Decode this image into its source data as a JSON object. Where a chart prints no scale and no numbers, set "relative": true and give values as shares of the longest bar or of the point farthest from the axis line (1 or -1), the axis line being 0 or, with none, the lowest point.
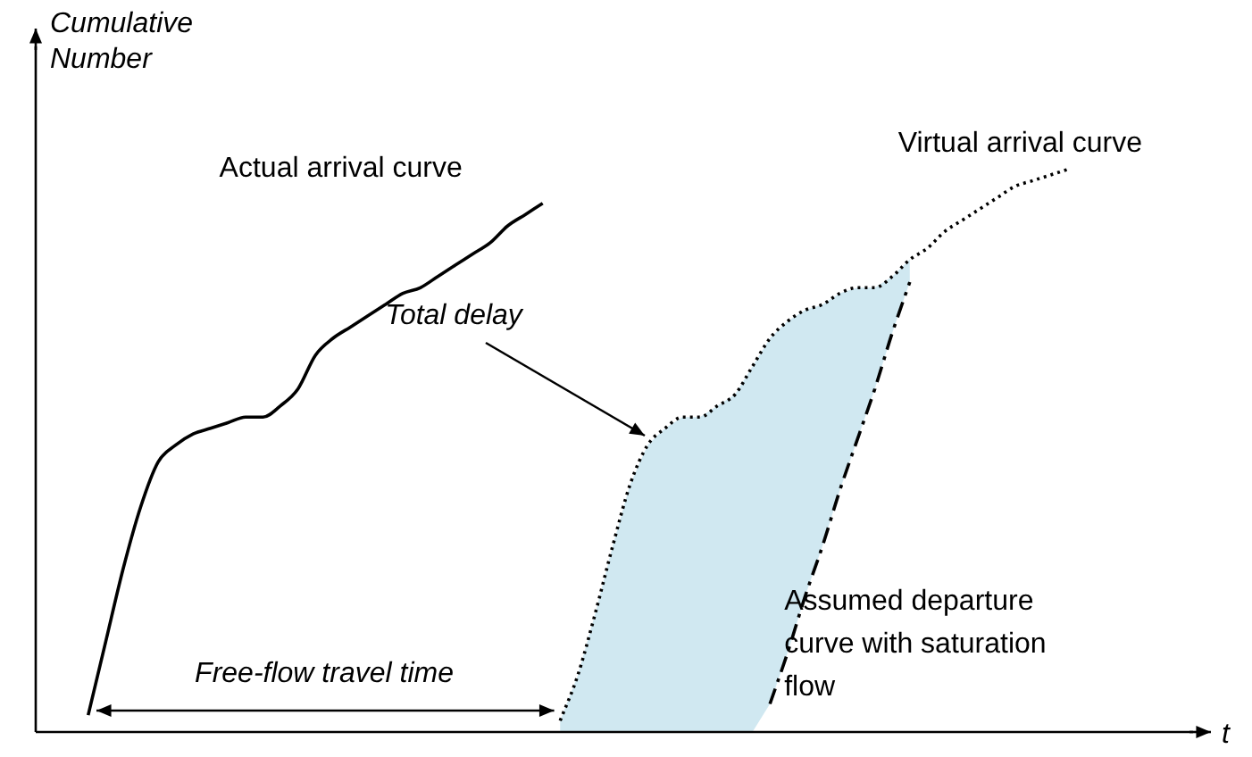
{
  "chart_data": {
    "type": "line",
    "relative": true,
    "xlabel": "t",
    "ylabel": "Cumulative Number",
    "legend": false,
    "grid": false,
    "marker": "none",
    "categories": [
      null,
      null,
      null,
      null,
      null,
      null,
      null,
      null,
      null,
      null,
      null,
      null,
      null,
      null,
      null,
      null,
      null,
      null,
      null,
      null,
      null,
      null,
      null,
      null,
      null,
      null,
      null,
      null,
      null,
      null,
      null,
      null,
      null,
      null,
      null,
      null,
      null,
      null,
      null,
      null,
      null,
      null,
      null,
      null,
      null,
      null,
      null,
      null,
      null,
      null,
      null,
      null,
      null,
      null,
      null,
      null,
      null,
      null,
      null,
      null,
      null,
      null,
      null,
      null,
      null,
      null,
      null
    ],
    "series": [
      {
        "name": "Actual arrival curve",
        "color": "#000000",
        "line_style": "solid",
        "values": [
          null,
          null,
          null,
          0.03,
          0.16,
          0.29,
          0.4,
          0.48,
          0.51,
          0.53,
          0.54,
          0.55,
          0.56,
          0.56,
          0.58,
          0.61,
          0.67,
          0.7,
          0.72,
          0.74,
          0.76,
          0.78,
          0.79,
          0.81,
          0.83,
          0.85,
          0.87,
          0.9,
          0.92,
          0.94,
          null,
          null,
          null,
          null,
          null,
          null,
          null,
          null,
          null,
          null,
          null,
          null,
          null,
          null,
          null,
          null,
          null,
          null,
          null,
          null,
          null,
          null,
          null,
          null,
          null,
          null,
          null,
          null,
          null,
          null,
          null,
          null,
          null,
          null,
          null,
          null,
          null
        ]
      },
      {
        "name": "Virtual arrival curve",
        "color": "#000000",
        "line_style": "dotted",
        "values": [
          null,
          null,
          null,
          null,
          null,
          null,
          null,
          null,
          null,
          null,
          null,
          null,
          null,
          null,
          null,
          null,
          null,
          null,
          null,
          null,
          null,
          null,
          null,
          null,
          null,
          null,
          null,
          null,
          null,
          null,
          0.02,
          0.1,
          0.21,
          0.33,
          0.44,
          0.51,
          0.54,
          0.56,
          0.56,
          0.58,
          0.6,
          0.65,
          0.7,
          0.73,
          0.75,
          0.76,
          0.78,
          0.79,
          0.79,
          0.81,
          0.84,
          0.86,
          0.89,
          0.91,
          0.93,
          0.95,
          0.97,
          0.98,
          0.99,
          1.0,
          null,
          null,
          null,
          null,
          null,
          null,
          null
        ],
        "lower": [
          null,
          null,
          null,
          null,
          null,
          null,
          null,
          null,
          null,
          null,
          null,
          null,
          null,
          null,
          null,
          null,
          null,
          null,
          null,
          null,
          null,
          null,
          null,
          null,
          null,
          null,
          null,
          null,
          null,
          null,
          0,
          0,
          0,
          0,
          0,
          0,
          0,
          0,
          0,
          0,
          0,
          0,
          0.05,
          0.14,
          0.24,
          0.33,
          0.43,
          0.52,
          0.61,
          0.71,
          0.8,
          null,
          null,
          null,
          null,
          null,
          null,
          null,
          null,
          null,
          null,
          null,
          null,
          null,
          null,
          null,
          null
        ],
        "upper": [
          null,
          null,
          null,
          null,
          null,
          null,
          null,
          null,
          null,
          null,
          null,
          null,
          null,
          null,
          null,
          null,
          null,
          null,
          null,
          null,
          null,
          null,
          null,
          null,
          null,
          null,
          null,
          null,
          null,
          null,
          0.02,
          0.1,
          0.21,
          0.33,
          0.44,
          0.51,
          0.54,
          0.56,
          0.56,
          0.58,
          0.6,
          0.65,
          0.7,
          0.73,
          0.75,
          0.76,
          0.78,
          0.79,
          0.79,
          0.81,
          0.84,
          null,
          null,
          null,
          null,
          null,
          null,
          null,
          null,
          null,
          null,
          null,
          null,
          null,
          null,
          null,
          null
        ]
      },
      {
        "name": "Assumed departure curve with saturation flow",
        "color": "#000000",
        "line_style": "dashed",
        "values": [
          null,
          null,
          null,
          null,
          null,
          null,
          null,
          null,
          null,
          null,
          null,
          null,
          null,
          null,
          null,
          null,
          null,
          null,
          null,
          null,
          null,
          null,
          null,
          null,
          null,
          null,
          null,
          null,
          null,
          null,
          null,
          null,
          null,
          null,
          null,
          null,
          null,
          null,
          null,
          null,
          null,
          null,
          0.05,
          0.14,
          0.24,
          0.33,
          0.43,
          0.52,
          0.61,
          0.71,
          0.8,
          null,
          null,
          null,
          null,
          null,
          null,
          null,
          null,
          null,
          null,
          null,
          null,
          null,
          null,
          null,
          null
        ]
      }
    ],
    "annotations": [
      "Total delay",
      "Free-flow travel time"
    ]
  }
}
